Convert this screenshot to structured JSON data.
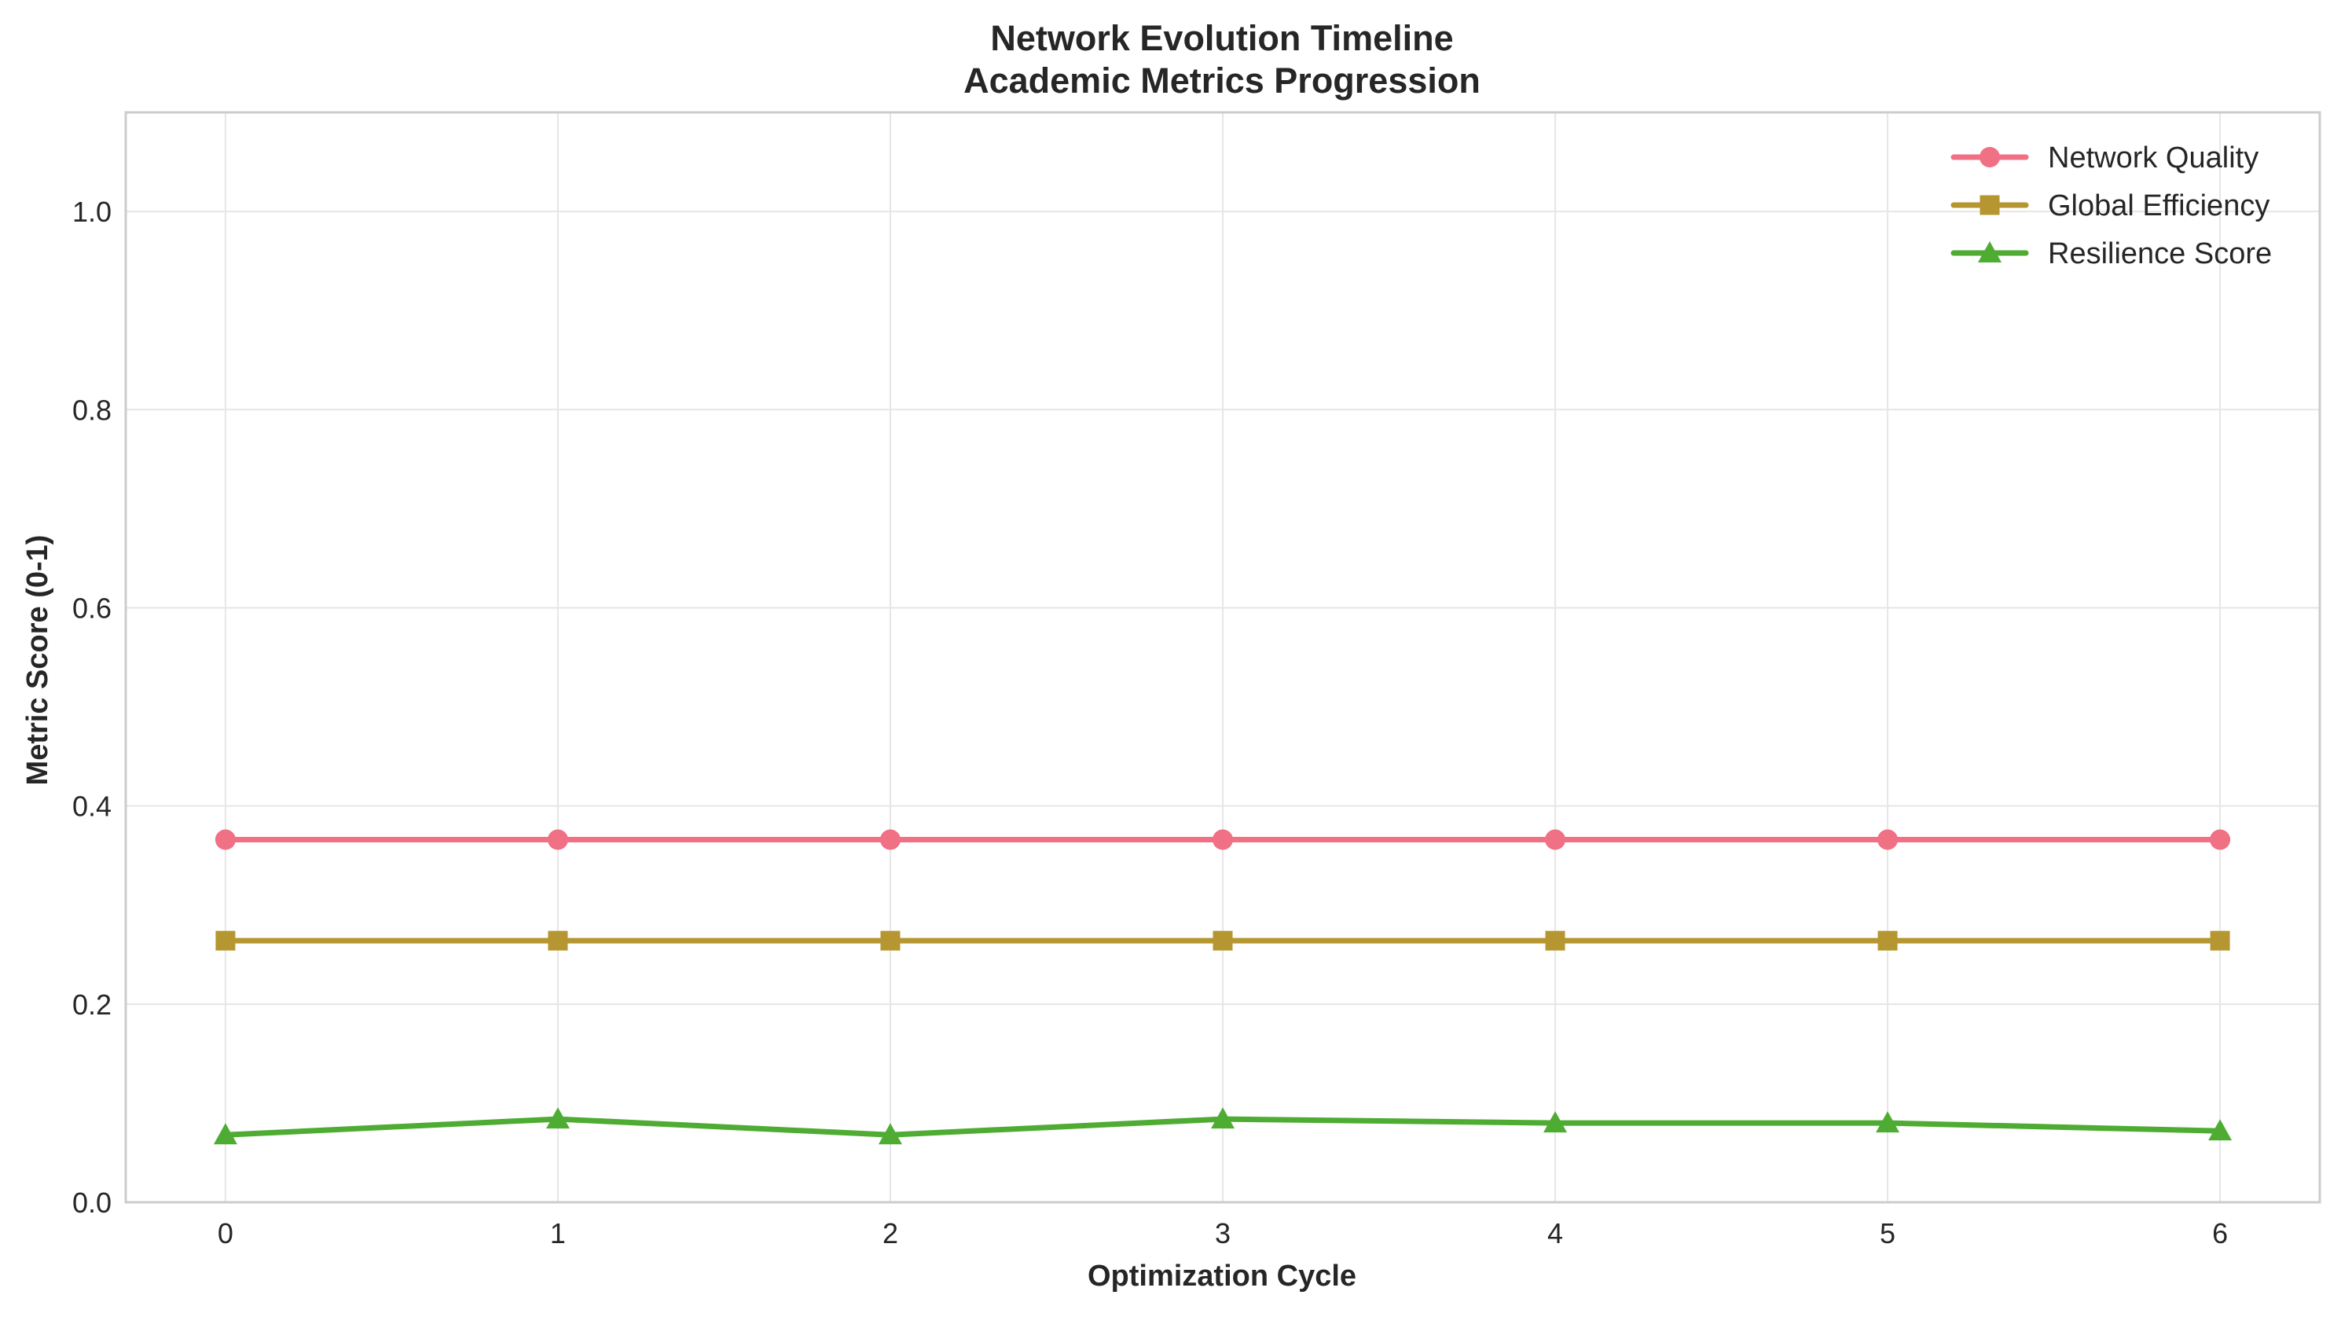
{
  "chart_data": {
    "type": "line",
    "title": "Network Evolution Timeline",
    "subtitle": "Academic Metrics Progression",
    "xlabel": "Optimization Cycle",
    "ylabel": "Metric Score (0-1)",
    "x": [
      0,
      1,
      2,
      3,
      4,
      5,
      6
    ],
    "xlim": [
      -0.3,
      6.3
    ],
    "ylim": [
      0,
      1.1
    ],
    "xticks": [
      "0",
      "1",
      "2",
      "3",
      "4",
      "5",
      "6"
    ],
    "yticks": [
      "0.0",
      "0.2",
      "0.4",
      "0.6",
      "0.8",
      "1.0"
    ],
    "grid": true,
    "legend_position": "top-right",
    "series": [
      {
        "name": "Network Quality",
        "color": "#f07084",
        "marker": "circle",
        "values": [
          0.366,
          0.366,
          0.366,
          0.366,
          0.366,
          0.366,
          0.366
        ]
      },
      {
        "name": "Global Efficiency",
        "color": "#b59630",
        "marker": "square",
        "values": [
          0.264,
          0.264,
          0.264,
          0.264,
          0.264,
          0.264,
          0.264
        ]
      },
      {
        "name": "Resilience Score",
        "color": "#4eac33",
        "marker": "triangle",
        "values": [
          0.068,
          0.084,
          0.068,
          0.084,
          0.08,
          0.08,
          0.072
        ]
      }
    ]
  }
}
